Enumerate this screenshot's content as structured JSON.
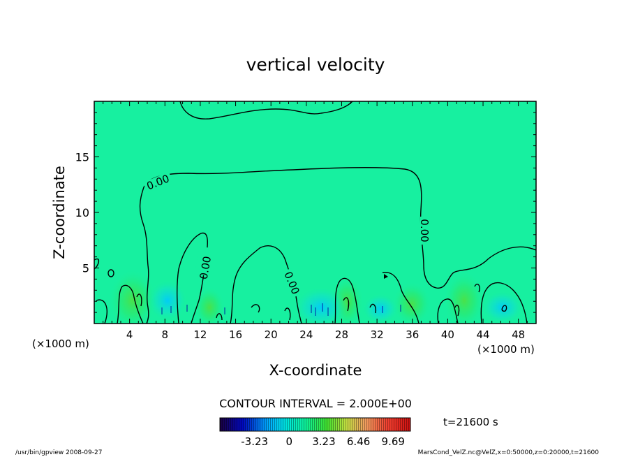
{
  "chart_data": {
    "type": "heatmap",
    "title": "vertical velocity",
    "xlabel": "X-coordinate",
    "ylabel": "Z-coordinate",
    "x_unit_left": "(×1000 m)",
    "x_unit_right": "(×1000 m)",
    "xlim": [
      0,
      50
    ],
    "ylim": [
      0,
      20
    ],
    "x_ticks": [
      4,
      8,
      12,
      16,
      20,
      24,
      28,
      32,
      36,
      40,
      44,
      48
    ],
    "y_ticks": [
      5,
      10,
      15
    ],
    "contour_labels": [
      "0.00",
      "0.00",
      "0.00",
      "0.00"
    ],
    "contour_interval": "CONTOUR INTERVAL = 2.000E+00",
    "colorbar": {
      "ticks": [
        "-3.23",
        "0",
        "3.23",
        "6.46",
        "9.69"
      ],
      "tick_values": [
        -3.23,
        0,
        3.23,
        6.46,
        9.69
      ],
      "range": [
        -6.46,
        11.3
      ]
    },
    "time_label": "t=21600 s",
    "footer_left": "/usr/bin/gpview  2008-09-27",
    "footer_right": "MarsCond_VelZ.nc@VelZ,x=0:50000,z=0:20000,t=21600",
    "colors": {
      "background_field": "#17f0a0",
      "contour": "#000000"
    }
  }
}
